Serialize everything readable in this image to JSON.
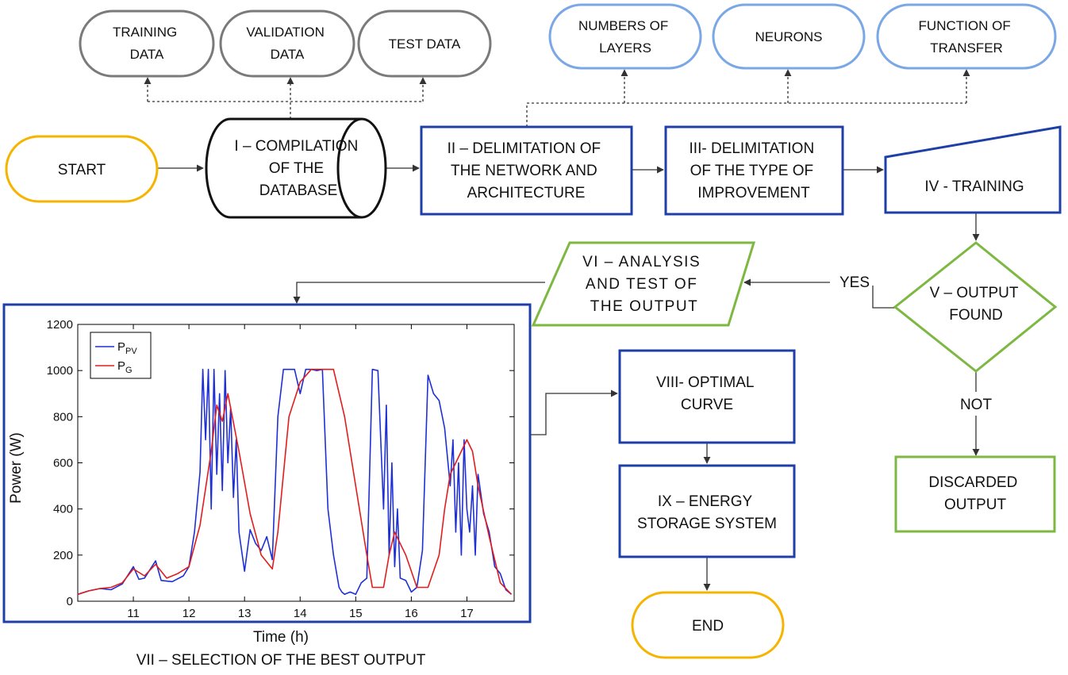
{
  "colors": {
    "yellow": "#f5b400",
    "gray": "#7a7a7a",
    "light_blue": "#7aa7e6",
    "dark_blue": "#1f3fa8",
    "green": "#7db842",
    "pv_line": "#1f2fd6",
    "pg_line": "#e11d1d"
  },
  "nodes": {
    "start": "START",
    "training_data": [
      "TRAINING",
      "DATA"
    ],
    "validation_data": [
      "VALIDATION",
      "DATA"
    ],
    "test_data": "TEST DATA",
    "compilation": [
      "I – COMPILATION",
      "OF THE",
      "DATABASE"
    ],
    "delimitation_network": [
      "II – DELIMITATION OF",
      "THE NETWORK AND",
      "ARCHITECTURE"
    ],
    "numbers_of_layers": [
      "NUMBERS OF",
      "LAYERS"
    ],
    "neurons": "NEURONS",
    "function_of_transfer": [
      "FUNCTION OF",
      "TRANSFER"
    ],
    "delimitation_improvement": [
      "III- DELIMITATION",
      "OF THE TYPE OF",
      "IMPROVEMENT"
    ],
    "training": "IV - TRAINING",
    "output_found": [
      "V – OUTPUT",
      "FOUND"
    ],
    "analysis": [
      "VI – ANALYSIS",
      "AND TEST OF",
      "THE OUTPUT"
    ],
    "discarded": [
      "DISCARDED",
      "OUTPUT"
    ],
    "optimal_curve": [
      "VIII- OPTIMAL",
      "CURVE"
    ],
    "energy_storage": [
      "IX – ENERGY",
      "STORAGE SYSTEM"
    ],
    "end": "END",
    "selection_caption": "VII – SELECTION OF THE BEST OUTPUT"
  },
  "edge_labels": {
    "yes": "YES",
    "not": "NOT"
  },
  "chart_data": {
    "type": "line",
    "xlabel": "Time (h)",
    "ylabel": "Power (W)",
    "xlim": [
      10.0,
      17.85
    ],
    "ylim": [
      0,
      1200
    ],
    "xticks": [
      11,
      12,
      13,
      14,
      15,
      16,
      17
    ],
    "yticks": [
      0,
      200,
      400,
      600,
      800,
      1000,
      1200
    ],
    "legend_position": "top-left",
    "series": [
      {
        "name": "P",
        "subscript": "PV",
        "color": "#1f2fd6",
        "x": [
          10.0,
          10.2,
          10.4,
          10.6,
          10.8,
          11.0,
          11.1,
          11.2,
          11.4,
          11.5,
          11.7,
          11.9,
          12.0,
          12.1,
          12.2,
          12.25,
          12.3,
          12.35,
          12.4,
          12.45,
          12.5,
          12.55,
          12.6,
          12.65,
          12.7,
          12.75,
          12.8,
          12.85,
          12.9,
          13.0,
          13.1,
          13.2,
          13.3,
          13.4,
          13.5,
          13.6,
          13.7,
          13.8,
          13.9,
          14.0,
          14.1,
          14.2,
          14.3,
          14.4,
          14.5,
          14.6,
          14.7,
          14.75,
          14.8,
          14.9,
          15.0,
          15.1,
          15.2,
          15.3,
          15.4,
          15.5,
          15.55,
          15.6,
          15.65,
          15.7,
          15.75,
          15.8,
          15.9,
          16.0,
          16.1,
          16.2,
          16.3,
          16.4,
          16.5,
          16.6,
          16.7,
          16.75,
          16.8,
          16.85,
          16.9,
          16.95,
          17.0,
          17.05,
          17.1,
          17.15,
          17.2,
          17.3,
          17.4,
          17.5,
          17.6,
          17.7,
          17.8
        ],
        "values": [
          30,
          45,
          55,
          50,
          75,
          150,
          95,
          100,
          175,
          90,
          85,
          110,
          150,
          300,
          560,
          1005,
          700,
          1005,
          400,
          1005,
          550,
          900,
          480,
          1000,
          600,
          840,
          450,
          700,
          300,
          130,
          310,
          250,
          220,
          280,
          180,
          800,
          1005,
          1005,
          1005,
          900,
          1005,
          1005,
          1000,
          1005,
          400,
          200,
          60,
          40,
          30,
          40,
          30,
          80,
          100,
          1005,
          1000,
          400,
          850,
          200,
          600,
          150,
          400,
          100,
          90,
          40,
          60,
          220,
          980,
          900,
          870,
          750,
          500,
          700,
          300,
          600,
          200,
          700,
          400,
          300,
          500,
          200,
          550,
          380,
          300,
          150,
          120,
          50,
          30
        ]
      },
      {
        "name": "P",
        "subscript": "G",
        "color": "#e11d1d",
        "x": [
          10.0,
          10.2,
          10.4,
          10.6,
          10.8,
          11.0,
          11.2,
          11.4,
          11.6,
          11.8,
          12.0,
          12.2,
          12.4,
          12.5,
          12.6,
          12.7,
          12.9,
          13.1,
          13.3,
          13.5,
          13.6,
          13.7,
          13.8,
          14.0,
          14.2,
          14.4,
          14.6,
          14.8,
          15.0,
          15.2,
          15.3,
          15.5,
          15.6,
          15.7,
          15.9,
          16.1,
          16.3,
          16.5,
          16.6,
          16.7,
          16.8,
          17.0,
          17.1,
          17.2,
          17.4,
          17.6,
          17.8
        ],
        "values": [
          30,
          45,
          55,
          60,
          80,
          140,
          110,
          160,
          100,
          120,
          150,
          330,
          650,
          850,
          780,
          900,
          650,
          380,
          200,
          140,
          300,
          550,
          800,
          950,
          1005,
          1005,
          1005,
          800,
          500,
          200,
          60,
          60,
          200,
          300,
          200,
          60,
          60,
          200,
          400,
          550,
          600,
          700,
          650,
          500,
          280,
          80,
          30
        ]
      }
    ]
  }
}
